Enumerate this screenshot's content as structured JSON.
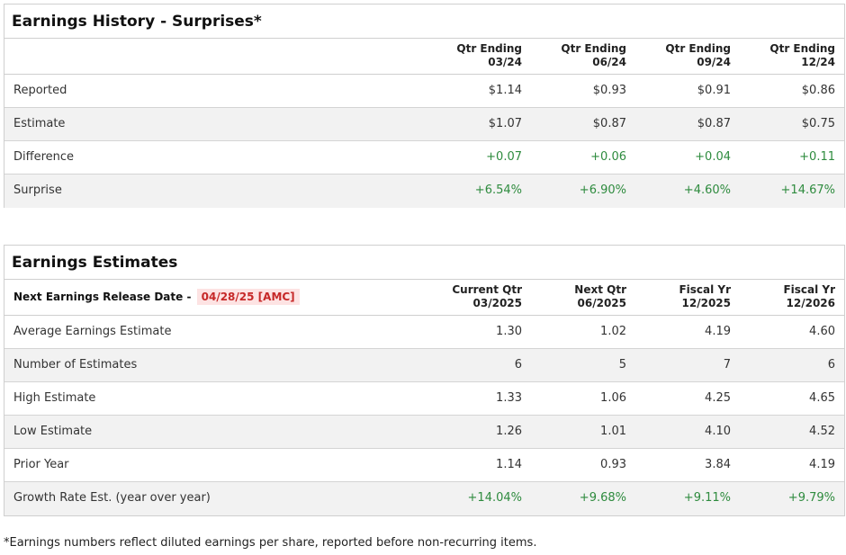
{
  "history": {
    "title": "Earnings History - Surprises*",
    "columns": [
      {
        "line1": "Qtr Ending",
        "line2": "03/24"
      },
      {
        "line1": "Qtr Ending",
        "line2": "06/24"
      },
      {
        "line1": "Qtr Ending",
        "line2": "09/24"
      },
      {
        "line1": "Qtr Ending",
        "line2": "12/24"
      }
    ],
    "rows": [
      {
        "label": "Reported",
        "values": [
          "$1.14",
          "$0.93",
          "$0.91",
          "$0.86"
        ]
      },
      {
        "label": "Estimate",
        "values": [
          "$1.07",
          "$0.87",
          "$0.87",
          "$0.75"
        ]
      },
      {
        "label": "Difference",
        "values": [
          "+0.07",
          "+0.06",
          "+0.04",
          "+0.11"
        ]
      },
      {
        "label": "Surprise",
        "values": [
          "+6.54%",
          "+6.90%",
          "+4.60%",
          "+14.67%"
        ]
      }
    ]
  },
  "estimates": {
    "title": "Earnings Estimates",
    "release_label": "Next Earnings Release Date -",
    "release_date": "04/28/25 [AMC]",
    "columns": [
      {
        "line1": "Current Qtr",
        "line2": "03/2025"
      },
      {
        "line1": "Next Qtr",
        "line2": "06/2025"
      },
      {
        "line1": "Fiscal Yr",
        "line2": "12/2025"
      },
      {
        "line1": "Fiscal Yr",
        "line2": "12/2026"
      }
    ],
    "rows": [
      {
        "label": "Average Earnings Estimate",
        "values": [
          "1.30",
          "1.02",
          "4.19",
          "4.60"
        ]
      },
      {
        "label": "Number of Estimates",
        "values": [
          "6",
          "5",
          "7",
          "6"
        ]
      },
      {
        "label": "High Estimate",
        "values": [
          "1.33",
          "1.06",
          "4.25",
          "4.65"
        ]
      },
      {
        "label": "Low Estimate",
        "values": [
          "1.26",
          "1.01",
          "4.10",
          "4.52"
        ]
      },
      {
        "label": "Prior Year",
        "values": [
          "1.14",
          "0.93",
          "3.84",
          "4.19"
        ]
      },
      {
        "label": "Growth Rate Est. (year over year)",
        "values": [
          "+14.04%",
          "+9.68%",
          "+9.11%",
          "+9.79%"
        ]
      }
    ]
  },
  "footnote": "*Earnings numbers reflect diluted earnings per share, reported before non-recurring items.",
  "colors": {
    "positive": "#2e8b3e",
    "release_date_text": "#c62828",
    "release_date_bg": "#fde3e3"
  }
}
